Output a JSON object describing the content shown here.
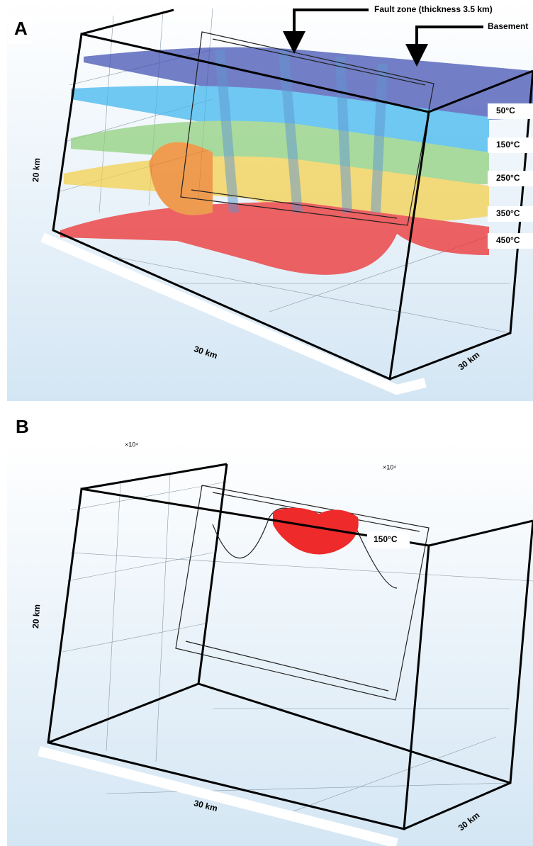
{
  "panels": [
    {
      "label": "A",
      "annotations": [
        "Fault zone (thickness 3.5 km)",
        "Basement"
      ],
      "isotherms": [
        "50°C",
        "150°C",
        "250°C",
        "350°C",
        "450°C"
      ],
      "axes": {
        "height": "20 km",
        "length": "30 km",
        "width": "30 km"
      }
    },
    {
      "label": "B",
      "multipliers": [
        "×10⁴",
        "×10⁴"
      ],
      "isotherms": [
        "150°C"
      ],
      "axes": {
        "height": "20 km",
        "length": "30 km",
        "width": "30 km"
      }
    }
  ]
}
